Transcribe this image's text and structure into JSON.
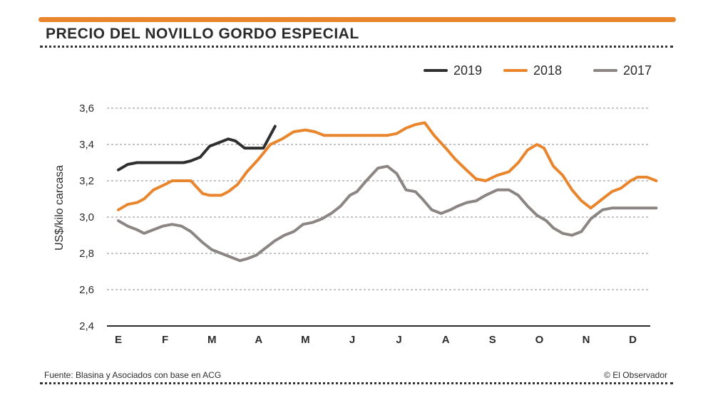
{
  "header": {
    "title": "PRECIO DEL NOVILLO GORDO ESPECIAL",
    "accent_color": "#e8852d"
  },
  "footer": {
    "source": "Fuente: Blasina y Asociados con base en ACG",
    "credit": "© El Observador"
  },
  "chart_data": {
    "type": "line",
    "title": "PRECIO DEL NOVILLO GORDO ESPECIAL",
    "xlabel": "",
    "ylabel": "US$/kilo carcasa",
    "ylim": [
      2.4,
      3.6
    ],
    "yticks": [
      2.4,
      2.6,
      2.8,
      3.0,
      3.2,
      3.4,
      3.6
    ],
    "ytick_labels": [
      "2,4",
      "2,6",
      "2,8",
      "3,0",
      "3,2",
      "3,4",
      "3,6"
    ],
    "categories": [
      "E",
      "F",
      "M",
      "A",
      "M",
      "J",
      "J",
      "A",
      "S",
      "O",
      "N",
      "D"
    ],
    "grid": true,
    "legend_position": "top-right",
    "series": [
      {
        "name": "2019",
        "color": "#2f2f2f",
        "x": [
          0.0,
          0.2,
          0.4,
          0.6,
          0.8,
          1.0,
          1.2,
          1.4,
          1.55,
          1.75,
          1.95,
          2.15,
          2.35,
          2.5,
          2.7,
          2.9,
          3.1,
          3.35
        ],
        "values": [
          3.26,
          3.29,
          3.3,
          3.3,
          3.3,
          3.3,
          3.3,
          3.3,
          3.31,
          3.33,
          3.39,
          3.41,
          3.43,
          3.42,
          3.38,
          3.38,
          3.38,
          3.5
        ]
      },
      {
        "name": "2018",
        "color": "#e8852d",
        "x": [
          0.0,
          0.2,
          0.4,
          0.55,
          0.75,
          1.0,
          1.15,
          1.35,
          1.55,
          1.8,
          1.95,
          2.2,
          2.35,
          2.55,
          2.75,
          3.0,
          3.25,
          3.5,
          3.75,
          4.0,
          4.2,
          4.4,
          4.65,
          4.85,
          5.1,
          5.3,
          5.55,
          5.75,
          5.95,
          6.15,
          6.35,
          6.55,
          6.75,
          7.0,
          7.2,
          7.4,
          7.65,
          7.85,
          8.1,
          8.35,
          8.55,
          8.75,
          8.95,
          9.1,
          9.3,
          9.5,
          9.7,
          9.9,
          10.1,
          10.35,
          10.55,
          10.75,
          10.95,
          11.1,
          11.3,
          11.5
        ],
        "values": [
          3.04,
          3.07,
          3.08,
          3.1,
          3.15,
          3.18,
          3.2,
          3.2,
          3.2,
          3.13,
          3.12,
          3.12,
          3.14,
          3.18,
          3.25,
          3.32,
          3.4,
          3.43,
          3.47,
          3.48,
          3.47,
          3.45,
          3.45,
          3.45,
          3.45,
          3.45,
          3.45,
          3.45,
          3.46,
          3.49,
          3.51,
          3.52,
          3.45,
          3.38,
          3.32,
          3.27,
          3.21,
          3.2,
          3.23,
          3.25,
          3.3,
          3.37,
          3.4,
          3.38,
          3.28,
          3.23,
          3.15,
          3.09,
          3.05,
          3.1,
          3.14,
          3.16,
          3.2,
          3.22,
          3.22,
          3.2
        ]
      },
      {
        "name": "2017",
        "color": "#8b8584",
        "x": [
          0.0,
          0.2,
          0.4,
          0.55,
          0.75,
          0.95,
          1.15,
          1.35,
          1.55,
          1.8,
          2.0,
          2.2,
          2.4,
          2.6,
          2.75,
          2.95,
          3.15,
          3.35,
          3.55,
          3.75,
          3.95,
          4.15,
          4.35,
          4.55,
          4.75,
          4.95,
          5.1,
          5.3,
          5.55,
          5.75,
          5.95,
          6.15,
          6.35,
          6.5,
          6.7,
          6.9,
          7.1,
          7.25,
          7.45,
          7.65,
          7.85,
          8.1,
          8.35,
          8.55,
          8.75,
          8.95,
          9.15,
          9.3,
          9.5,
          9.7,
          9.9,
          10.1,
          10.35,
          10.55,
          10.75,
          10.95,
          11.1,
          11.3,
          11.5
        ],
        "values": [
          2.98,
          2.95,
          2.93,
          2.91,
          2.93,
          2.95,
          2.96,
          2.95,
          2.92,
          2.86,
          2.82,
          2.8,
          2.78,
          2.76,
          2.77,
          2.79,
          2.83,
          2.87,
          2.9,
          2.92,
          2.96,
          2.97,
          2.99,
          3.02,
          3.06,
          3.12,
          3.14,
          3.2,
          3.27,
          3.28,
          3.24,
          3.15,
          3.14,
          3.1,
          3.04,
          3.02,
          3.04,
          3.06,
          3.08,
          3.09,
          3.12,
          3.15,
          3.15,
          3.12,
          3.06,
          3.01,
          2.98,
          2.94,
          2.91,
          2.9,
          2.92,
          2.99,
          3.04,
          3.05,
          3.05,
          3.05,
          3.05,
          3.05,
          3.05
        ]
      }
    ]
  }
}
